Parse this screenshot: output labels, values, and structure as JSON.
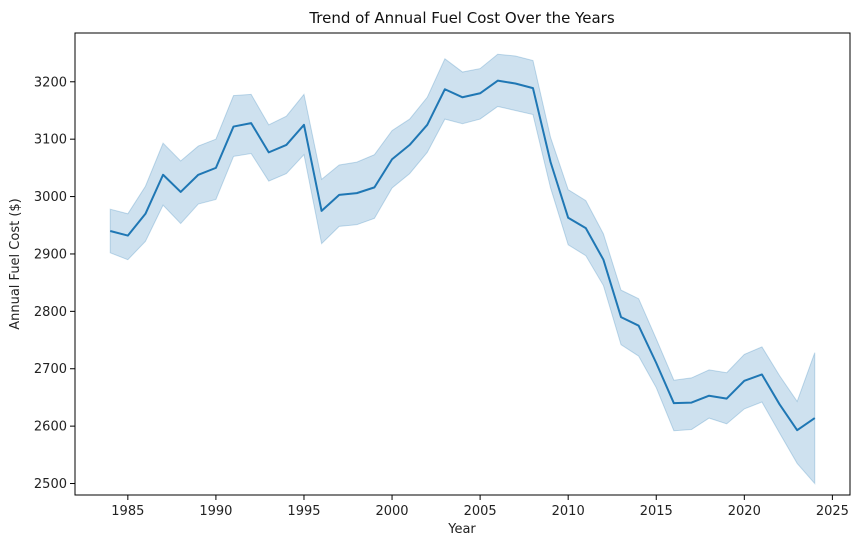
{
  "chart_data": {
    "type": "line",
    "title": "Trend of Annual Fuel Cost Over the Years",
    "xlabel": "Year",
    "ylabel": "Annual Fuel Cost ($)",
    "xlim": [
      1982,
      2026
    ],
    "ylim": [
      2480,
      3285
    ],
    "xticks": [
      1985,
      1990,
      1995,
      2000,
      2005,
      2010,
      2015,
      2020,
      2025
    ],
    "yticks": [
      2500,
      2600,
      2700,
      2800,
      2900,
      3000,
      3100,
      3200
    ],
    "grid": false,
    "colors": {
      "line": "#1f77b4",
      "band": "#1f77b4"
    },
    "series": [
      {
        "x": [
          1984,
          1985,
          1986,
          1987,
          1988,
          1989,
          1990,
          1991,
          1992,
          1993,
          1994,
          1995,
          1996,
          1997,
          1998,
          1999,
          2000,
          2001,
          2002,
          2003,
          2004,
          2005,
          2006,
          2007,
          2008,
          2009,
          2010,
          2011,
          2012,
          2013,
          2014,
          2015,
          2016,
          2017,
          2018,
          2019,
          2020,
          2021,
          2022,
          2023,
          2024
        ],
        "y": [
          2940,
          2932,
          2970,
          3038,
          3008,
          3038,
          3050,
          3122,
          3128,
          3077,
          3090,
          3125,
          2975,
          3003,
          3006,
          3016,
          3065,
          3090,
          3125,
          3187,
          3173,
          3180,
          3202,
          3197,
          3189,
          3060,
          2963,
          2945,
          2890,
          2790,
          2775,
          2710,
          2640,
          2641,
          2653,
          2648,
          2679,
          2690,
          2638,
          2593,
          2614
        ],
        "y_lower": [
          2902,
          2890,
          2922,
          2985,
          2953,
          2987,
          2995,
          3070,
          3075,
          3027,
          3040,
          3073,
          2918,
          2948,
          2951,
          2962,
          3015,
          3040,
          3077,
          3135,
          3127,
          3135,
          3157,
          3150,
          3143,
          3015,
          2916,
          2897,
          2845,
          2742,
          2722,
          2667,
          2592,
          2594,
          2614,
          2604,
          2630,
          2642,
          2588,
          2535,
          2500
        ],
        "y_upper": [
          2978,
          2970,
          3018,
          3093,
          3062,
          3088,
          3100,
          3176,
          3178,
          3125,
          3140,
          3178,
          3030,
          3055,
          3060,
          3073,
          3115,
          3135,
          3173,
          3240,
          3217,
          3223,
          3248,
          3245,
          3237,
          3103,
          3012,
          2993,
          2935,
          2837,
          2822,
          2752,
          2680,
          2684,
          2698,
          2693,
          2725,
          2738,
          2688,
          2643,
          2728
        ]
      }
    ]
  }
}
